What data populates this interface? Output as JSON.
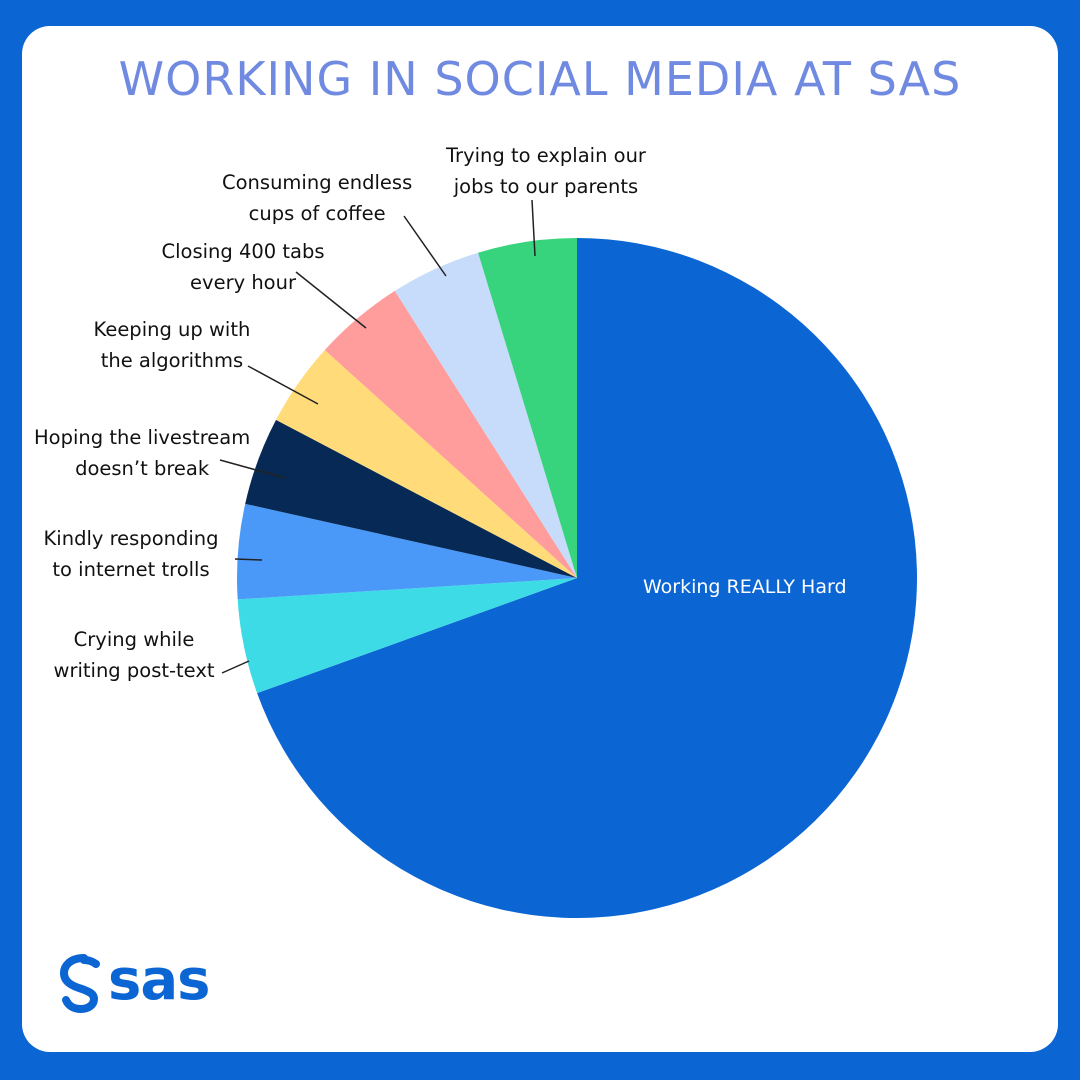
{
  "title": "WORKING IN SOCIAL MEDIA AT SAS",
  "brand": {
    "logo_text": "sas",
    "logo_icon": "sas-swirl-icon"
  },
  "colors": {
    "background": "#0b66d4",
    "card": "#ffffff",
    "title": "#6f8ae0"
  },
  "chart_data": {
    "type": "pie",
    "title": "WORKING IN SOCIAL MEDIA AT SAS",
    "start": "12 o'clock, clockwise",
    "slices": [
      {
        "label": "Working REALLY Hard",
        "lines": [
          "Working REALLY Hard"
        ],
        "value": 69.5,
        "color": "#0b66d4"
      },
      {
        "label": "Crying while writing post-text",
        "lines": [
          "Crying while",
          "writing post-text"
        ],
        "value": 4.5,
        "color": "#3ddbe6"
      },
      {
        "label": "Kindly responding to internet trolls",
        "lines": [
          "Kindly responding",
          "to internet trolls"
        ],
        "value": 4.5,
        "color": "#4a98f7"
      },
      {
        "label": "Hoping the livestream doesn't break",
        "lines": [
          "Hoping the livestream",
          "doesn’t break"
        ],
        "value": 4.2,
        "color": "#062a55"
      },
      {
        "label": "Keeping up with the algorithms",
        "lines": [
          "Keeping up with",
          "the algorithms"
        ],
        "value": 4.0,
        "color": "#ffdc79"
      },
      {
        "label": "Closing 400 tabs every hour",
        "lines": [
          "Closing 400 tabs",
          "every hour"
        ],
        "value": 4.3,
        "color": "#ff9c9c"
      },
      {
        "label": "Consuming endless cups of coffee",
        "lines": [
          "Consuming endless",
          "cups of coffee"
        ],
        "value": 4.3,
        "color": "#c6dcfa"
      },
      {
        "label": "Trying to explain our jobs to our parents",
        "lines": [
          "Trying to explain our",
          "jobs to our parents"
        ],
        "value": 4.7,
        "color": "#38d47d"
      }
    ]
  }
}
